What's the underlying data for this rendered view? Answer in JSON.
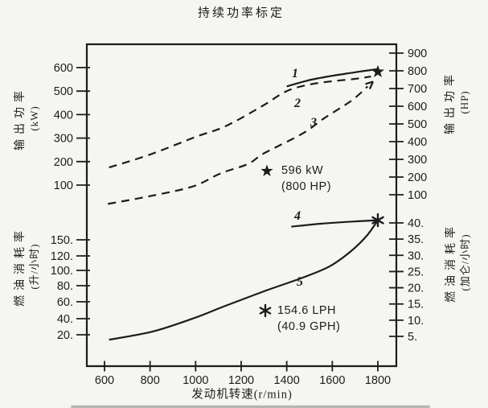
{
  "page": {
    "background": "#f5f5f2",
    "ink": "#1c1c1c"
  },
  "title": "持续功率标定",
  "x_axis": {
    "label": "发动机转速(r/min)",
    "tick_labels": [
      "600",
      "800",
      "1000",
      "1200",
      "1400",
      "1600",
      "1800"
    ]
  },
  "axes": {
    "power_kw": {
      "name_lines": [
        "输出功率",
        "(kW)"
      ],
      "tick_labels": [
        "600",
        "500",
        "400",
        "300",
        "200",
        "100"
      ]
    },
    "power_hp": {
      "name_lines": [
        "输出功率",
        "(HP)"
      ],
      "tick_labels": [
        "900",
        "800",
        "700",
        "600",
        "500",
        "400",
        "300",
        "200",
        "100"
      ]
    },
    "fuel_lph": {
      "name_lines": [
        "燃油消耗率",
        "(升/小时)"
      ],
      "tick_labels": [
        "150.",
        "120.",
        "100.",
        "80.",
        "60.",
        "40.",
        "20."
      ]
    },
    "fuel_gph": {
      "name_lines": [
        "燃油消耗率",
        "(加仑/小时)"
      ],
      "tick_labels": [
        "40.",
        "35.",
        "30.",
        "25.",
        "20.",
        "15.",
        "10.",
        "5."
      ]
    }
  },
  "annotations": {
    "rated_power": {
      "marker": "star",
      "line1": "596 kW",
      "line2": "(800 HP)"
    },
    "rated_fuel": {
      "marker": "asterisk",
      "line1": "154.6 LPH",
      "line2": "(40.9 GPH)"
    }
  },
  "chart_data": {
    "type": "line",
    "title": "持续功率标定",
    "xlabel": "发动机转速(r/min)",
    "x_range": [
      600,
      1800
    ],
    "grid": false,
    "panels": [
      {
        "panel": "output-power",
        "ylabel_left": "输出功率 (kW)",
        "ylabel_right": "输出功率 (HP)",
        "yticks_left_kw": [
          600,
          500,
          400,
          300,
          200,
          100
        ],
        "yticks_right_hp": [
          900,
          800,
          700,
          600,
          500,
          400,
          300,
          200,
          100
        ],
        "series": [
          {
            "name": "1",
            "style": "solid",
            "unit": "kW",
            "points": [
              [
                1400,
                520
              ],
              [
                1500,
                547
              ],
              [
                1600,
                565
              ],
              [
                1700,
                580
              ],
              [
                1800,
                594
              ]
            ]
          },
          {
            "name": "2",
            "style": "dashed",
            "unit": "kW",
            "points": [
              [
                620,
                175
              ],
              [
                800,
                230
              ],
              [
                1000,
                305
              ],
              [
                1130,
                350
              ],
              [
                1290,
                435
              ],
              [
                1400,
                500
              ],
              [
                1500,
                528
              ],
              [
                1600,
                542
              ],
              [
                1700,
                552
              ],
              [
                1770,
                562
              ]
            ]
          },
          {
            "name": "3",
            "style": "dashed",
            "unit": "kW",
            "arrow_end": true,
            "points": [
              [
                615,
                20
              ],
              [
                810,
                55
              ],
              [
                990,
                95
              ],
              [
                1110,
                150
              ],
              [
                1230,
                190
              ],
              [
                1300,
                235
              ],
              [
                1470,
                320
              ],
              [
                1565,
                385
              ],
              [
                1685,
                460
              ],
              [
                1755,
                520
              ]
            ]
          }
        ],
        "marker": {
          "shape": "star",
          "x": 1800,
          "y_kw": 596,
          "label": "596 kW (800 HP)"
        }
      },
      {
        "panel": "fuel-consumption",
        "ylabel_left": "燃油消耗率 (升/小时)",
        "ylabel_right": "燃油消耗率 (加仑/小时)",
        "yticks_left_lph": [
          150,
          120,
          100,
          80,
          60,
          40,
          20
        ],
        "yticks_right_gph": [
          40,
          35,
          30,
          25,
          20,
          15,
          10,
          5
        ],
        "series": [
          {
            "name": "4",
            "style": "solid",
            "unit": "LPH",
            "points": [
              [
                1420,
                147
              ],
              [
                1550,
                150.5
              ],
              [
                1690,
                153
              ],
              [
                1800,
                154.6
              ]
            ]
          },
          {
            "name": "5",
            "style": "solid",
            "unit": "LPH",
            "points": [
              [
                620,
                15
              ],
              [
                810,
                24.5
              ],
              [
                990,
                40
              ],
              [
                1130,
                54.5
              ],
              [
                1300,
                71.5
              ],
              [
                1480,
                88.5
              ],
              [
                1590,
                101
              ],
              [
                1680,
                118
              ],
              [
                1750,
                136
              ],
              [
                1800,
                154.6
              ]
            ]
          }
        ],
        "marker": {
          "shape": "asterisk",
          "x": 1800,
          "y_lph": 154.6,
          "label": "154.6 LPH (40.9 GPH)"
        }
      }
    ]
  }
}
